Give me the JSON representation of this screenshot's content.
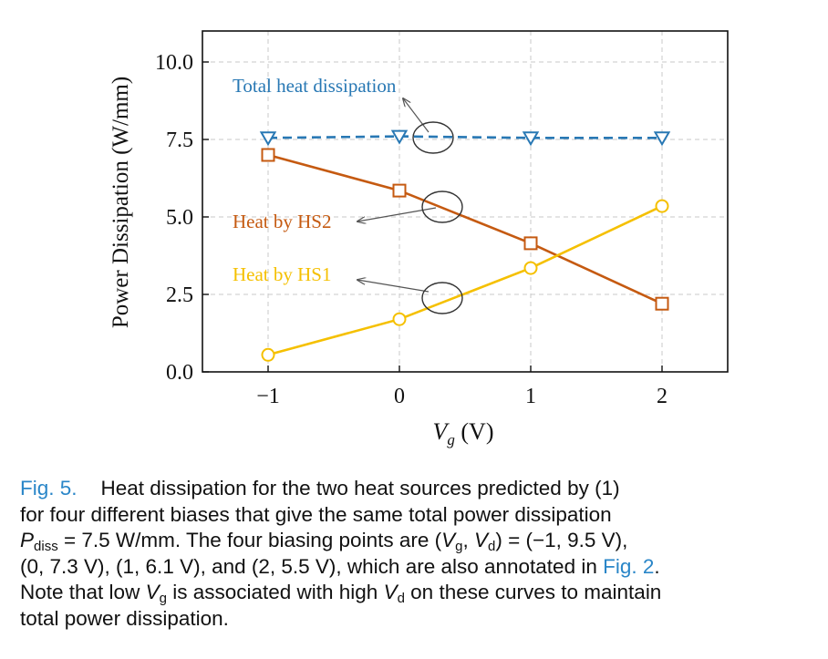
{
  "chart_data": {
    "type": "line",
    "title": "",
    "xlabel": "V",
    "xlabel_sub": "g",
    "xlabel_unit": " (V)",
    "ylabel": "Power Dissipation (W/mm)",
    "xlim": [
      -1.5,
      2.5
    ],
    "ylim": [
      0,
      11
    ],
    "xticks": [
      -1,
      0,
      1,
      2
    ],
    "xtick_labels": [
      "−1",
      "0",
      "1",
      "2"
    ],
    "yticks": [
      0,
      2.5,
      5,
      7.5,
      10
    ],
    "ytick_labels": [
      "0.0",
      "2.5",
      "5.0",
      "7.5",
      "10.0"
    ],
    "grid": true,
    "x": [
      -1,
      0,
      1,
      2
    ],
    "series": [
      {
        "name": "Total heat dissipation",
        "values": [
          7.55,
          7.6,
          7.55,
          7.55
        ],
        "color": "#2878b4",
        "marker": "triangle-down",
        "dashed": true
      },
      {
        "name": "Heat by HS2",
        "values": [
          7.0,
          5.85,
          4.15,
          2.2
        ],
        "color": "#c55a11",
        "marker": "square",
        "dashed": false
      },
      {
        "name": "Heat by HS1",
        "values": [
          0.55,
          1.7,
          3.35,
          5.35
        ],
        "color": "#f5c000",
        "marker": "circle",
        "dashed": false
      }
    ]
  },
  "caption": {
    "label": "Fig. 5.",
    "line1": "Heat dissipation for the two heat sources predicted by (1)",
    "line2": "for four different biases that give the same total power dissipation",
    "line3_sym": "P",
    "line3_sub": "diss",
    "line3_rest": " = 7.5 W/mm. The four biasing points are (",
    "line3_v1": "V",
    "line3_v1_sub": "g",
    "line3_mid": ", ",
    "line3_v2": "V",
    "line3_v2_sub": "d",
    "line3_end": ") = (−1, 9.5 V),",
    "line4_pre": "(0, 7.3 V), (1, 6.1 V), and (2, 5.5 V), which are also annotated in ",
    "line4_ref": "Fig. 2",
    "line4_end": ".",
    "line5_pre": "Note that low ",
    "line5_v1": "V",
    "line5_v1_sub": "g",
    "line5_mid": " is associated with high ",
    "line5_v2": "V",
    "line5_v2_sub": "d",
    "line5_end": " on these curves to maintain",
    "line6": "total power dissipation."
  }
}
